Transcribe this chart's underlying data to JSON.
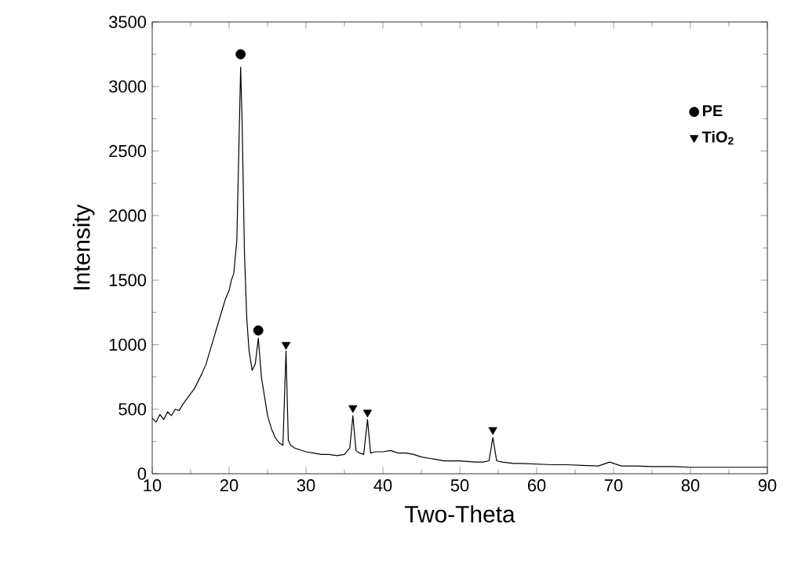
{
  "chart_data": {
    "type": "line",
    "xlabel": "Two-Theta",
    "ylabel": "Intensity",
    "xlim": [
      10,
      90
    ],
    "ylim": [
      0,
      3500
    ],
    "xticks": [
      10,
      20,
      30,
      40,
      50,
      60,
      70,
      80,
      90
    ],
    "yticks": [
      0,
      500,
      1000,
      1500,
      2000,
      2500,
      3000,
      3500
    ],
    "legend": "top right",
    "grid": false,
    "series": [
      {
        "color": "#000000",
        "x": [
          10,
          10.5,
          11,
          11.5,
          12,
          12.5,
          13,
          13.5,
          14,
          14.5,
          15,
          15.5,
          16,
          16.5,
          17,
          17.5,
          18,
          18.5,
          19,
          19.5,
          20,
          20.3,
          20.6,
          21,
          21.3,
          21.5,
          21.7,
          22,
          22.3,
          22.6,
          23,
          23.4,
          23.8,
          24.2,
          24.6,
          25,
          25.5,
          26,
          26.5,
          27,
          27.4,
          27.7,
          28,
          28.5,
          29,
          30,
          31,
          32,
          33,
          34,
          35,
          35.7,
          36.1,
          36.5,
          37,
          37.5,
          38,
          38.4,
          39,
          40,
          41,
          42,
          43,
          44,
          45,
          46,
          47,
          48,
          49,
          50,
          51,
          52,
          53,
          53.8,
          54.3,
          54.8,
          55.5,
          57,
          58,
          60,
          62,
          64,
          66,
          68,
          69.5,
          71,
          73,
          75,
          78,
          80,
          83,
          85,
          88,
          90
        ],
        "values": [
          430,
          400,
          460,
          420,
          480,
          450,
          500,
          490,
          540,
          580,
          620,
          660,
          720,
          780,
          850,
          950,
          1050,
          1150,
          1250,
          1350,
          1420,
          1500,
          1550,
          1800,
          2600,
          3150,
          2700,
          1700,
          1200,
          950,
          800,
          850,
          1050,
          750,
          600,
          450,
          350,
          280,
          240,
          220,
          950,
          260,
          220,
          200,
          190,
          170,
          160,
          150,
          150,
          140,
          150,
          200,
          450,
          180,
          160,
          150,
          420,
          160,
          170,
          170,
          180,
          160,
          160,
          150,
          130,
          120,
          110,
          100,
          100,
          100,
          95,
          90,
          90,
          100,
          280,
          100,
          90,
          80,
          80,
          75,
          70,
          70,
          65,
          60,
          90,
          60,
          60,
          55,
          55,
          50,
          50,
          50,
          50,
          50
        ]
      },
      {
        "type": "scatter",
        "name": "PE",
        "marker": "circle",
        "color": "#000000",
        "x": [
          21.5,
          23.8
        ],
        "values": [
          3250,
          1110
        ]
      },
      {
        "type": "scatter",
        "name": "TiO$_{2}$",
        "marker": "triangle",
        "color": "#000000",
        "x": [
          27.4,
          36.1,
          38.0,
          54.3
        ],
        "values": [
          1000,
          510,
          475,
          340
        ]
      }
    ]
  }
}
